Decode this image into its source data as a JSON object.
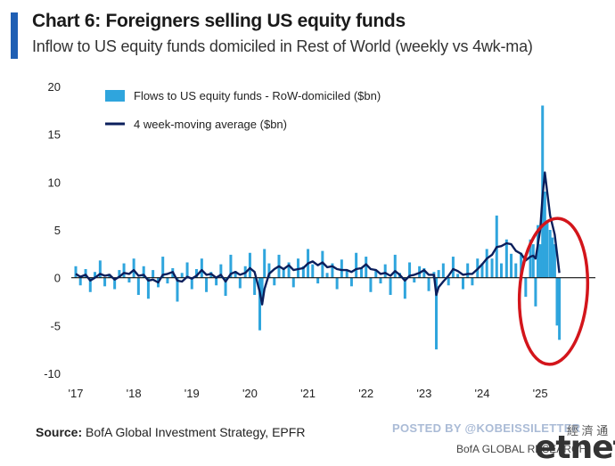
{
  "header": {
    "title": "Chart 6: Foreigners selling US equity funds",
    "subtitle": "Inflow to US equity funds domiciled in Rest of World (weekly vs 4wk-ma)"
  },
  "footer": {
    "source_label": "Source:",
    "source_text": "BofA Global Investment Strategy, EPFR",
    "watermark": "POSTED BY @KOBEISSILETTER",
    "cn_mark": "經 濟 通",
    "brand": "BofA GLOBAL RESEARCH",
    "logo": "etnet"
  },
  "colors": {
    "weekly": "#2fa5dd",
    "ma": "#0b1f5c",
    "circle": "#d3151b",
    "accent": "#1f5fb4"
  },
  "chart_data": {
    "type": "bar",
    "title": "Chart 6: Foreigners selling US equity funds",
    "subtitle": "Inflow to US equity funds domiciled in Rest of World (weekly vs 4wk-ma)",
    "xlabel": "",
    "ylabel": "",
    "ylim": [
      -10,
      20
    ],
    "yticks": [
      -10,
      -5,
      0,
      5,
      10,
      15,
      20
    ],
    "xlim": [
      2017.0,
      2025.95
    ],
    "xticks": [
      {
        "year": 2017,
        "label": "'17"
      },
      {
        "year": 2018,
        "label": "'18"
      },
      {
        "year": 2019,
        "label": "'19"
      },
      {
        "year": 2020,
        "label": "'20"
      },
      {
        "year": 2021,
        "label": "'21"
      },
      {
        "year": 2022,
        "label": "'22"
      },
      {
        "year": 2023,
        "label": "'23"
      },
      {
        "year": 2024,
        "label": "'24"
      },
      {
        "year": 2025,
        "label": "'25"
      }
    ],
    "grid": false,
    "legend_position": "top-left",
    "annotation": "red ellipse around 2025 flows",
    "series": [
      {
        "name": "Flows to US equity funds - RoW-domiciled ($bn)",
        "kind": "bar",
        "x": [
          2017.0,
          2017.08,
          2017.17,
          2017.25,
          2017.33,
          2017.42,
          2017.5,
          2017.58,
          2017.67,
          2017.75,
          2017.83,
          2017.92,
          2018.0,
          2018.08,
          2018.17,
          2018.25,
          2018.33,
          2018.42,
          2018.5,
          2018.58,
          2018.67,
          2018.75,
          2018.83,
          2018.92,
          2019.0,
          2019.08,
          2019.17,
          2019.25,
          2019.33,
          2019.42,
          2019.5,
          2019.58,
          2019.67,
          2019.75,
          2019.83,
          2019.92,
          2020.0,
          2020.08,
          2020.17,
          2020.21,
          2020.25,
          2020.33,
          2020.42,
          2020.5,
          2020.58,
          2020.67,
          2020.75,
          2020.83,
          2020.92,
          2021.0,
          2021.08,
          2021.17,
          2021.25,
          2021.33,
          2021.42,
          2021.5,
          2021.58,
          2021.67,
          2021.75,
          2021.83,
          2021.92,
          2022.0,
          2022.08,
          2022.17,
          2022.25,
          2022.33,
          2022.42,
          2022.5,
          2022.58,
          2022.67,
          2022.75,
          2022.83,
          2022.92,
          2023.0,
          2023.08,
          2023.17,
          2023.21,
          2023.25,
          2023.33,
          2023.42,
          2023.5,
          2023.58,
          2023.67,
          2023.75,
          2023.83,
          2023.92,
          2024.0,
          2024.08,
          2024.17,
          2024.25,
          2024.33,
          2024.42,
          2024.5,
          2024.58,
          2024.67,
          2024.75,
          2024.83,
          2024.88,
          2024.92,
          2024.96,
          2025.0,
          2025.04,
          2025.08,
          2025.12,
          2025.17,
          2025.21,
          2025.25,
          2025.29,
          2025.33
        ],
        "values": [
          1.2,
          -0.8,
          0.9,
          -1.5,
          0.6,
          1.8,
          -0.9,
          0.4,
          -1.2,
          0.8,
          1.5,
          -0.5,
          2.0,
          -1.8,
          1.2,
          -2.2,
          0.8,
          -1.0,
          2.2,
          -0.6,
          1.0,
          -2.5,
          0.5,
          1.6,
          -1.2,
          0.9,
          2.0,
          -1.5,
          0.6,
          -0.8,
          1.4,
          -1.9,
          2.4,
          0.7,
          -1.1,
          1.2,
          2.6,
          -1.8,
          -5.5,
          -2.5,
          3.0,
          1.5,
          -0.8,
          2.4,
          0.9,
          1.6,
          -1.0,
          2.0,
          1.2,
          3.0,
          1.4,
          -0.6,
          2.8,
          0.5,
          1.5,
          -1.2,
          1.9,
          0.8,
          -0.9,
          2.6,
          1.0,
          2.2,
          -1.5,
          0.8,
          -0.6,
          1.4,
          -1.8,
          2.4,
          0.5,
          -2.2,
          1.6,
          -0.5,
          1.2,
          1.0,
          -1.4,
          0.6,
          -7.5,
          0.8,
          1.5,
          -0.8,
          2.2,
          0.4,
          -1.2,
          1.5,
          -0.8,
          2.0,
          1.5,
          3.0,
          2.0,
          6.5,
          1.5,
          4.0,
          2.5,
          1.5,
          2.6,
          -2.0,
          4.0,
          3.5,
          -3.0,
          5.5,
          3.5,
          18.0,
          9.0,
          6.0,
          5.0,
          4.2,
          3.5,
          -5.0,
          -6.5
        ]
      },
      {
        "name": "4 week-moving average ($bn)",
        "kind": "line",
        "x": [
          2017.0,
          2017.08,
          2017.17,
          2017.25,
          2017.33,
          2017.42,
          2017.5,
          2017.58,
          2017.67,
          2017.75,
          2017.83,
          2017.92,
          2018.0,
          2018.08,
          2018.17,
          2018.25,
          2018.33,
          2018.42,
          2018.5,
          2018.58,
          2018.67,
          2018.75,
          2018.83,
          2018.92,
          2019.0,
          2019.08,
          2019.17,
          2019.25,
          2019.33,
          2019.42,
          2019.5,
          2019.58,
          2019.67,
          2019.75,
          2019.83,
          2019.92,
          2020.0,
          2020.08,
          2020.17,
          2020.21,
          2020.25,
          2020.33,
          2020.42,
          2020.5,
          2020.58,
          2020.67,
          2020.75,
          2020.83,
          2020.92,
          2021.0,
          2021.08,
          2021.17,
          2021.25,
          2021.33,
          2021.42,
          2021.5,
          2021.58,
          2021.67,
          2021.75,
          2021.83,
          2021.92,
          2022.0,
          2022.08,
          2022.17,
          2022.25,
          2022.33,
          2022.42,
          2022.5,
          2022.58,
          2022.67,
          2022.75,
          2022.83,
          2022.92,
          2023.0,
          2023.08,
          2023.17,
          2023.21,
          2023.25,
          2023.33,
          2023.42,
          2023.5,
          2023.58,
          2023.67,
          2023.75,
          2023.83,
          2023.92,
          2024.0,
          2024.08,
          2024.17,
          2024.25,
          2024.33,
          2024.42,
          2024.5,
          2024.58,
          2024.67,
          2024.75,
          2024.83,
          2024.88,
          2024.92,
          2024.96,
          2025.0,
          2025.04,
          2025.08,
          2025.12,
          2025.17,
          2025.21,
          2025.25,
          2025.29,
          2025.33
        ],
        "values": [
          0.4,
          0.1,
          0.3,
          -0.3,
          0.0,
          0.4,
          0.2,
          0.3,
          -0.2,
          0.1,
          0.5,
          0.4,
          0.8,
          0.2,
          0.3,
          -0.3,
          -0.2,
          -0.5,
          0.3,
          0.4,
          0.6,
          -0.3,
          -0.4,
          0.1,
          -0.1,
          0.2,
          0.8,
          0.3,
          0.4,
          0.0,
          0.3,
          -0.4,
          0.4,
          0.6,
          0.3,
          0.5,
          1.0,
          0.6,
          -1.5,
          -2.8,
          -1.2,
          0.4,
          0.9,
          1.2,
          0.9,
          1.3,
          0.8,
          0.9,
          1.0,
          1.5,
          1.7,
          1.3,
          1.6,
          1.1,
          1.2,
          0.9,
          0.8,
          0.8,
          0.6,
          0.9,
          1.0,
          1.4,
          0.9,
          0.8,
          0.4,
          0.5,
          0.2,
          0.7,
          0.3,
          -0.3,
          0.2,
          0.3,
          0.5,
          0.8,
          0.3,
          0.3,
          -1.8,
          -1.0,
          -0.4,
          0.2,
          0.9,
          0.7,
          0.3,
          0.4,
          0.4,
          0.9,
          1.4,
          2.0,
          2.4,
          3.2,
          3.3,
          3.6,
          3.5,
          2.8,
          2.5,
          1.8,
          2.2,
          2.3,
          2.0,
          3.5,
          5.0,
          8.5,
          11.0,
          9.0,
          6.5,
          5.5,
          4.5,
          2.5,
          0.5
        ]
      }
    ]
  }
}
